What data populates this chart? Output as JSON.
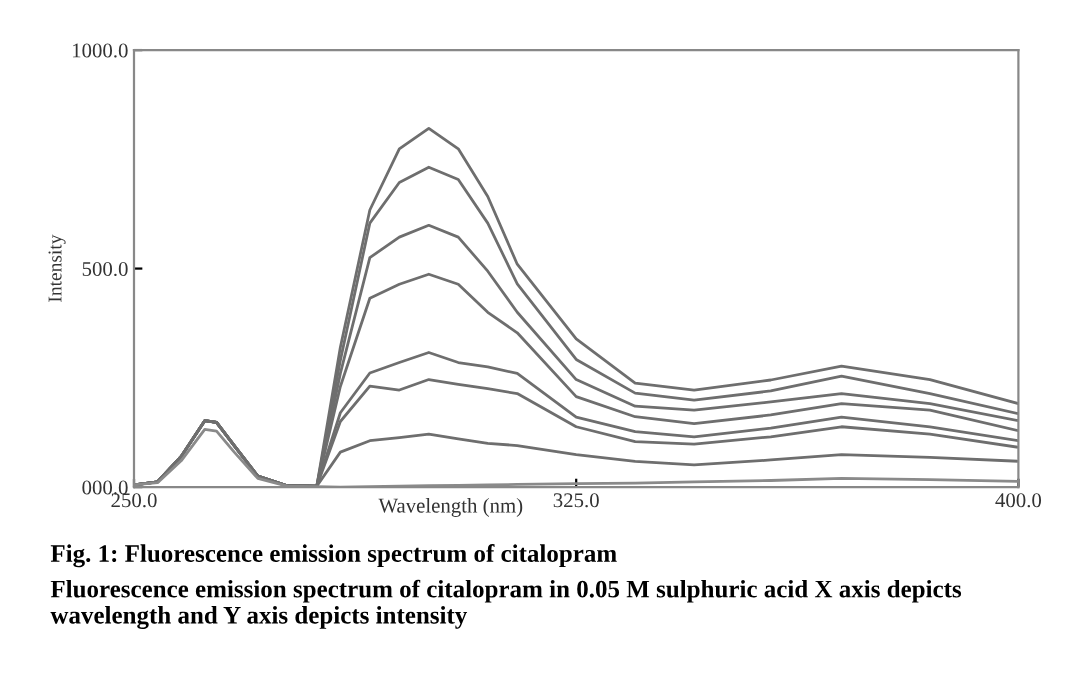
{
  "chart_data": {
    "type": "line",
    "title": "Fig. 1: Fluorescence emission spectrum of citalopram",
    "subtitle": "Fluorescence emission spectrum of citalopram in 0.05 M sulphuric acid X axis depicts wavelength and Y axis depicts intensity",
    "xlabel": "Wavelength (nm)",
    "ylabel": "Intensity",
    "x": [
      250,
      254,
      258,
      262,
      264,
      267,
      271,
      276,
      281,
      285,
      290,
      295,
      300,
      305,
      310,
      315,
      325,
      335,
      345,
      358,
      370,
      385,
      400
    ],
    "series": [
      {
        "color": "#6e6e6e",
        "values": [
          5,
          12,
          70,
          152,
          148,
          95,
          25,
          3,
          2,
          320,
          634,
          774,
          821,
          774,
          665,
          510,
          339,
          238,
          222,
          245,
          277,
          246,
          191
        ]
      },
      {
        "color": "#6e6e6e",
        "values": [
          5,
          12,
          70,
          152,
          148,
          95,
          25,
          3,
          2,
          290,
          604,
          697,
          732,
          704,
          604,
          465,
          292,
          215,
          199,
          220,
          254,
          214,
          168
        ]
      },
      {
        "color": "#6e6e6e",
        "values": [
          5,
          12,
          70,
          152,
          148,
          95,
          25,
          3,
          2,
          260,
          525,
          572,
          599,
          572,
          494,
          400,
          246,
          185,
          176,
          195,
          214,
          191,
          152
        ]
      },
      {
        "color": "#6e6e6e",
        "values": [
          5,
          12,
          70,
          152,
          148,
          95,
          25,
          3,
          2,
          230,
          432,
          464,
          487,
          464,
          400,
          353,
          207,
          161,
          145,
          165,
          191,
          176,
          129
        ]
      },
      {
        "color": "#6e6e6e",
        "values": [
          5,
          12,
          70,
          152,
          148,
          95,
          25,
          3,
          2,
          170,
          261,
          285,
          308,
          285,
          275,
          260,
          160,
          127,
          115,
          135,
          160,
          138,
          106
        ]
      },
      {
        "color": "#6e6e6e",
        "values": [
          5,
          12,
          70,
          152,
          148,
          95,
          25,
          3,
          2,
          150,
          231,
          222,
          246,
          235,
          225,
          214,
          138,
          104,
          98,
          115,
          138,
          121,
          91
        ]
      },
      {
        "color": "#6e6e6e",
        "values": [
          5,
          12,
          70,
          152,
          148,
          95,
          25,
          3,
          2,
          80,
          106,
          113,
          121,
          110,
          100,
          95,
          74,
          59,
          51,
          62,
          74,
          68,
          59
        ]
      },
      {
        "color": "#8a8a8a",
        "values": [
          5,
          10,
          60,
          132,
          128,
          80,
          20,
          2,
          1,
          0,
          1,
          2,
          3,
          4,
          5,
          6,
          8,
          9,
          12,
          15,
          20,
          17,
          13
        ]
      }
    ],
    "xlim": [
      250,
      400
    ],
    "ylim": [
      0,
      1000
    ],
    "xticks": [
      {
        "value": 250,
        "label": "250.0"
      },
      {
        "value": 325,
        "label": "325.0"
      },
      {
        "value": 400,
        "label": "400.0"
      }
    ],
    "yticks": [
      {
        "value": 0,
        "label": "000.0"
      },
      {
        "value": 500,
        "label": "500.0"
      },
      {
        "value": 1000,
        "label": "1000.0"
      }
    ],
    "grid": false,
    "legend": false,
    "marker": "none",
    "line_style": "solid"
  }
}
